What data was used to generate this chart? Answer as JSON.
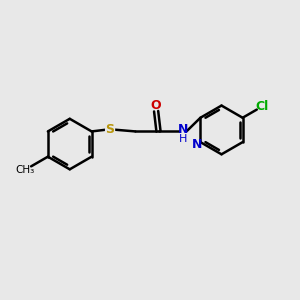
{
  "background_color": "#e8e8e8",
  "bond_color": "#000000",
  "bond_width": 1.8,
  "S_color": "#b8960c",
  "N_color": "#0000cc",
  "O_color": "#cc0000",
  "Cl_color": "#00aa00",
  "C_color": "#000000",
  "figsize": [
    3.0,
    3.0
  ],
  "dpi": 100,
  "xlim": [
    0,
    10
  ],
  "ylim": [
    1,
    9
  ]
}
